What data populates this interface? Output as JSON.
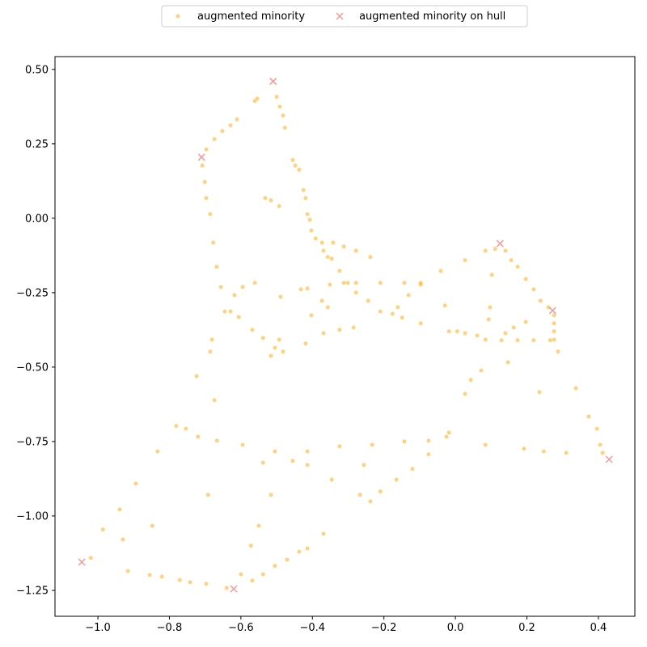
{
  "chart_data": {
    "type": "scatter",
    "xlim": [
      -1.12,
      0.502
    ],
    "ylim": [
      -1.337,
      0.543
    ],
    "xticks": [
      {
        "value": -1.0,
        "label": "−1.0"
      },
      {
        "value": -0.8,
        "label": "−0.8"
      },
      {
        "value": -0.6,
        "label": "−0.6"
      },
      {
        "value": -0.4,
        "label": "−0.4"
      },
      {
        "value": -0.2,
        "label": "−0.2"
      },
      {
        "value": 0.0,
        "label": "0.0"
      },
      0.2,
      0.4
    ],
    "yticks": [
      {
        "value": 0.5,
        "label": "0.50"
      },
      {
        "value": 0.25,
        "label": "0.25"
      },
      {
        "value": 0.0,
        "label": "0.00"
      },
      {
        "value": -0.25,
        "label": "−0.25"
      },
      {
        "value": -0.5,
        "label": "−0.50"
      },
      {
        "value": -0.75,
        "label": "−0.75"
      },
      {
        "value": -1.0,
        "label": "−1.00"
      },
      {
        "value": -1.25,
        "label": "−1.25"
      }
    ],
    "grid": false,
    "legend": "top-center",
    "series": [
      {
        "name": "augmented minority",
        "color": "#ffa500",
        "marker": "dot",
        "x": [
          -0.697,
          -0.674,
          -0.652,
          -0.629,
          -0.611,
          -0.561,
          -0.554,
          -0.5,
          -0.491,
          -0.482,
          -0.477,
          -0.455,
          -0.448,
          -0.437,
          -0.425,
          -0.419,
          -0.414,
          -0.407,
          -0.403,
          -0.391,
          -0.373,
          -0.369,
          -0.357,
          -0.532,
          -0.516,
          -0.493,
          -0.708,
          -0.701,
          -0.697,
          -0.686,
          -0.677,
          -0.668,
          -0.656,
          -0.645,
          -0.618,
          -0.595,
          -0.561,
          -0.681,
          -0.686,
          -0.724,
          -0.674,
          -0.629,
          -0.606,
          -0.568,
          -0.538,
          -0.505,
          -0.482,
          -0.419,
          -0.369,
          -0.324,
          -0.285,
          -0.432,
          -0.414,
          -0.351,
          -0.357,
          -0.373,
          -0.346,
          -0.324,
          -0.301,
          -0.278,
          -0.244,
          -0.21,
          -0.176,
          -0.149,
          -0.312,
          -0.278,
          -0.21,
          -0.143,
          -0.097,
          -0.161,
          -0.131,
          -0.097,
          -0.041,
          0.027,
          0.084,
          0.111,
          -0.342,
          -0.312,
          -0.278,
          -0.238,
          0.14,
          0.156,
          0.174,
          0.197,
          0.219,
          0.238,
          0.26,
          0.276,
          0.276,
          0.276,
          0.276,
          0.287,
          0.084,
          0.129,
          0.174,
          0.219,
          0.265,
          -0.029,
          -0.018,
          0.005,
          0.027,
          0.061,
          0.102,
          0.097,
          0.093,
          0.197,
          0.163,
          0.14,
          0.147,
          0.235,
          0.027,
          0.043,
          0.072,
          0.337,
          0.373,
          0.396,
          0.405,
          0.412,
          -0.833,
          -0.781,
          -0.754,
          -0.72,
          -0.667,
          -0.595,
          -0.505,
          -0.414,
          -0.324,
          -0.233,
          -0.143,
          -0.075,
          -0.025,
          -0.018,
          0.084,
          0.192,
          0.247,
          0.31,
          -0.267,
          -0.238,
          -0.21,
          -0.165,
          -0.12,
          -0.075,
          -0.256,
          -0.346,
          -0.538,
          -0.455,
          -0.414,
          -1.02,
          -0.986,
          -0.939,
          -0.894,
          -0.848,
          -0.93,
          -0.916,
          -0.855,
          -0.821,
          -0.771,
          -0.742,
          -0.697,
          -0.64,
          -0.6,
          -0.568,
          -0.538,
          -0.505,
          -0.471,
          -0.437,
          -0.414,
          -0.516,
          -0.55,
          -0.572,
          -0.369,
          -0.692,
          -0.516,
          -0.493,
          -0.403,
          -0.489,
          -0.097
        ],
        "values": [
          0.231,
          0.266,
          0.293,
          0.312,
          0.332,
          0.394,
          0.402,
          0.408,
          0.375,
          0.345,
          0.304,
          0.196,
          0.177,
          0.163,
          0.095,
          0.068,
          0.014,
          -0.005,
          -0.041,
          -0.068,
          -0.082,
          -0.109,
          -0.13,
          0.068,
          0.06,
          0.041,
          0.177,
          0.122,
          0.068,
          0.014,
          -0.082,
          -0.163,
          -0.231,
          -0.313,
          -0.258,
          -0.231,
          -0.217,
          -0.408,
          -0.448,
          -0.53,
          -0.611,
          -0.313,
          -0.332,
          -0.375,
          -0.402,
          -0.435,
          -0.448,
          -0.421,
          -0.386,
          -0.375,
          -0.367,
          -0.239,
          -0.236,
          -0.223,
          -0.299,
          -0.277,
          -0.136,
          -0.177,
          -0.217,
          -0.25,
          -0.277,
          -0.313,
          -0.321,
          -0.334,
          -0.217,
          -0.217,
          -0.217,
          -0.217,
          -0.217,
          -0.299,
          -0.258,
          -0.223,
          -0.177,
          -0.141,
          -0.109,
          -0.103,
          -0.082,
          -0.095,
          -0.109,
          -0.13,
          -0.109,
          -0.141,
          -0.163,
          -0.204,
          -0.239,
          -0.277,
          -0.299,
          -0.326,
          -0.353,
          -0.38,
          -0.408,
          -0.448,
          -0.408,
          -0.41,
          -0.41,
          -0.41,
          -0.41,
          -0.293,
          -0.38,
          -0.38,
          -0.386,
          -0.394,
          -0.19,
          -0.299,
          -0.34,
          -0.348,
          -0.367,
          -0.386,
          -0.484,
          -0.584,
          -0.59,
          -0.543,
          -0.511,
          -0.571,
          -0.666,
          -0.707,
          -0.761,
          -0.788,
          -0.783,
          -0.698,
          -0.707,
          -0.734,
          -0.747,
          -0.761,
          -0.783,
          -0.783,
          -0.766,
          -0.761,
          -0.75,
          -0.747,
          -0.734,
          -0.72,
          -0.761,
          -0.774,
          -0.783,
          -0.788,
          -0.929,
          -0.951,
          -0.918,
          -0.878,
          -0.842,
          -0.793,
          -0.829,
          -0.878,
          -0.821,
          -0.815,
          -0.829,
          -1.141,
          -1.046,
          -0.978,
          -0.891,
          -1.033,
          -1.079,
          -1.185,
          -1.198,
          -1.204,
          -1.215,
          -1.223,
          -1.228,
          -1.242,
          -1.196,
          -1.217,
          -1.196,
          -1.168,
          -1.147,
          -1.12,
          -1.109,
          -0.929,
          -1.033,
          -1.1,
          -1.06,
          -0.929,
          -0.462,
          -0.408,
          -0.326,
          -0.264,
          -0.353
        ]
      },
      {
        "name": "augmented minority on hull",
        "color": "#f08080",
        "marker": "x",
        "x": [
          -0.51,
          -0.71,
          0.125,
          0.272,
          0.43,
          -1.045,
          -0.62
        ],
        "values": [
          0.46,
          0.205,
          -0.085,
          -0.31,
          -0.81,
          -1.155,
          -1.245
        ]
      }
    ]
  }
}
